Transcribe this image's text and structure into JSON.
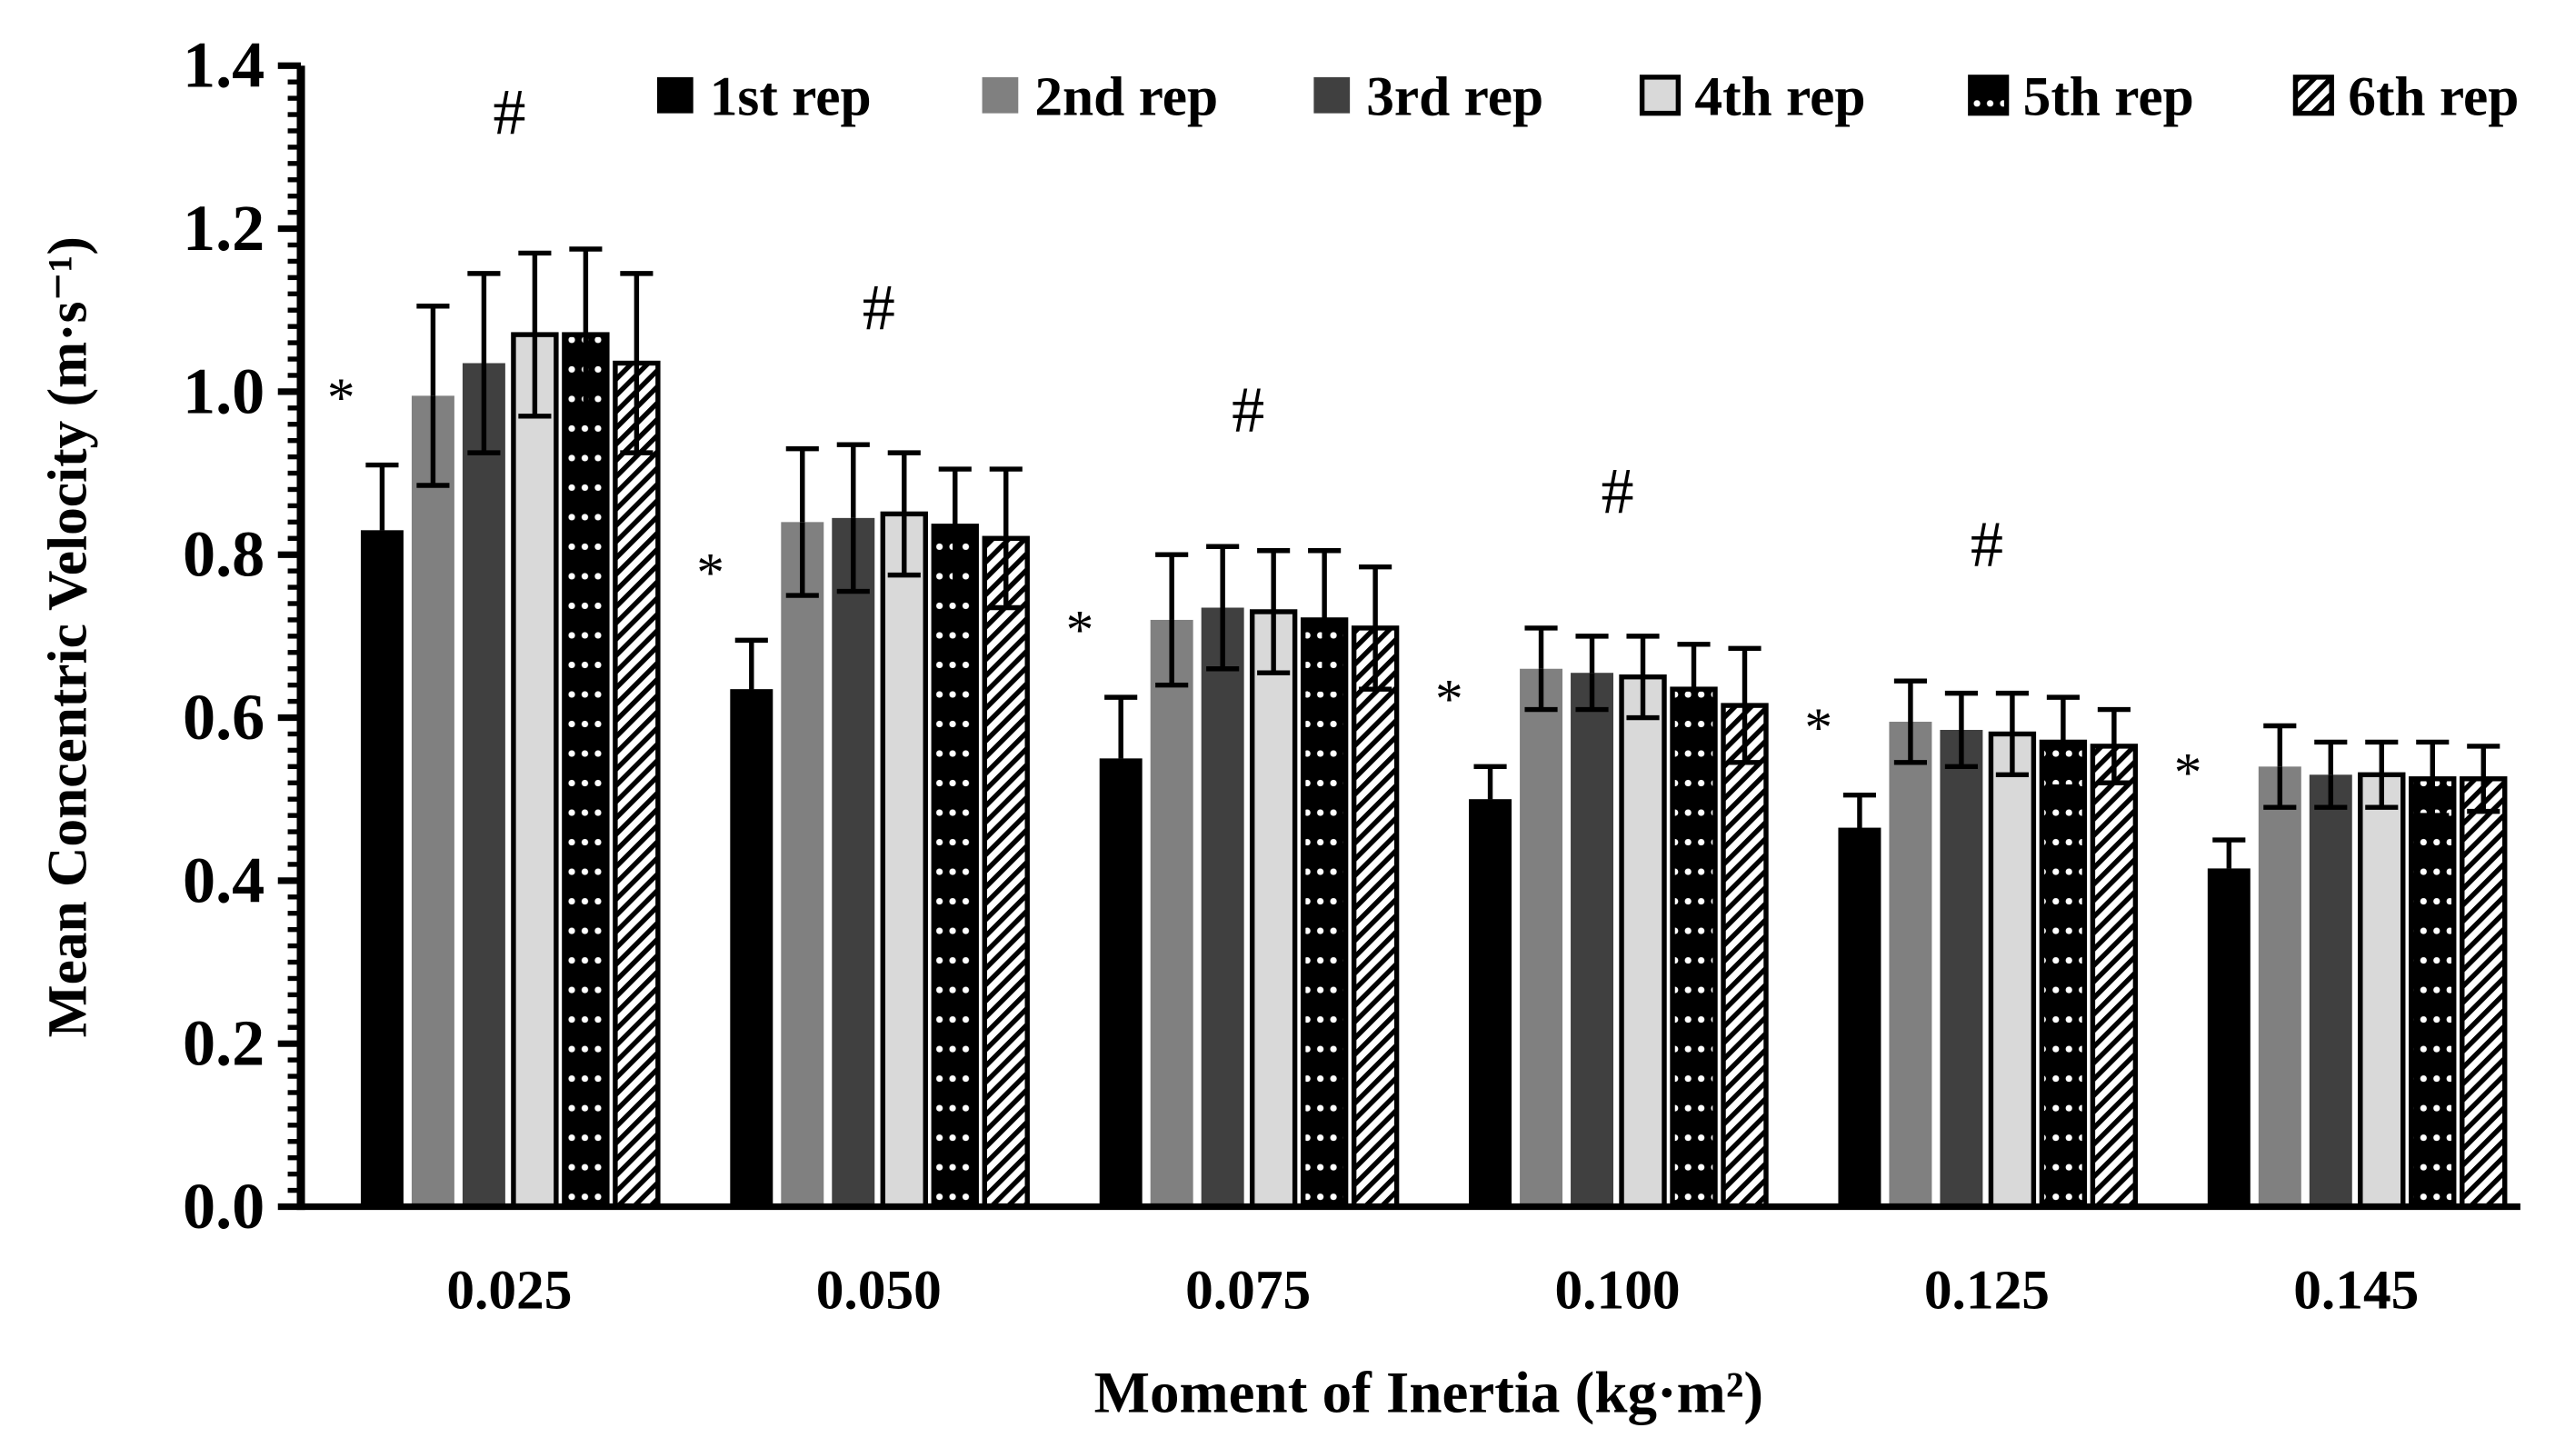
{
  "chart_data": {
    "type": "bar",
    "xlabel": "Moment of Inertia  (kg·m²)",
    "ylabel": "Mean Concentric Velocity (m·s⁻¹)",
    "ylim": [
      0,
      1.4
    ],
    "yticks": [
      "0.0",
      "0.2",
      "0.4",
      "0.6",
      "0.8",
      "1.0",
      "1.2",
      "1.4"
    ],
    "grid": false,
    "legend_position": "top",
    "categories": [
      "0.025",
      "0.050",
      "0.075",
      "0.100",
      "0.125",
      "0.145"
    ],
    "series": [
      {
        "name": "1st rep",
        "fill": "#000000",
        "pattern": "solid",
        "values": [
          0.83,
          0.635,
          0.55,
          0.5,
          0.465,
          0.415
        ],
        "errors": [
          0.08,
          0.06,
          0.075,
          0.04,
          0.04,
          0.035
        ]
      },
      {
        "name": "2nd rep",
        "fill": "#808080",
        "pattern": "solid",
        "values": [
          0.995,
          0.84,
          0.72,
          0.66,
          0.595,
          0.54
        ],
        "errors": [
          0.11,
          0.09,
          0.08,
          0.05,
          0.05,
          0.05
        ]
      },
      {
        "name": "3rd rep",
        "fill": "#404040",
        "pattern": "solid",
        "values": [
          1.035,
          0.845,
          0.735,
          0.655,
          0.585,
          0.53
        ],
        "errors": [
          0.11,
          0.09,
          0.075,
          0.045,
          0.045,
          0.04
        ]
      },
      {
        "name": "4th rep",
        "fill": "#d9d9d9",
        "pattern": "outlined",
        "values": [
          1.07,
          0.85,
          0.73,
          0.65,
          0.58,
          0.53
        ],
        "errors": [
          0.1,
          0.075,
          0.075,
          0.05,
          0.05,
          0.04
        ]
      },
      {
        "name": "5th rep",
        "fill": "#000000",
        "pattern": "dots",
        "values": [
          1.07,
          0.835,
          0.72,
          0.635,
          0.57,
          0.525
        ],
        "errors": [
          0.105,
          0.07,
          0.085,
          0.055,
          0.055,
          0.045
        ]
      },
      {
        "name": "6th rep",
        "fill": "#ffffff",
        "pattern": "diagonal-hatch",
        "values": [
          1.035,
          0.82,
          0.71,
          0.615,
          0.565,
          0.525
        ],
        "errors": [
          0.11,
          0.085,
          0.075,
          0.07,
          0.045,
          0.04
        ]
      }
    ],
    "annotations": {
      "first_rep_marker": "*",
      "group_marker": "#",
      "group_marker_categories": [
        "0.025",
        "0.050",
        "0.075",
        "0.100",
        "0.125"
      ]
    }
  }
}
